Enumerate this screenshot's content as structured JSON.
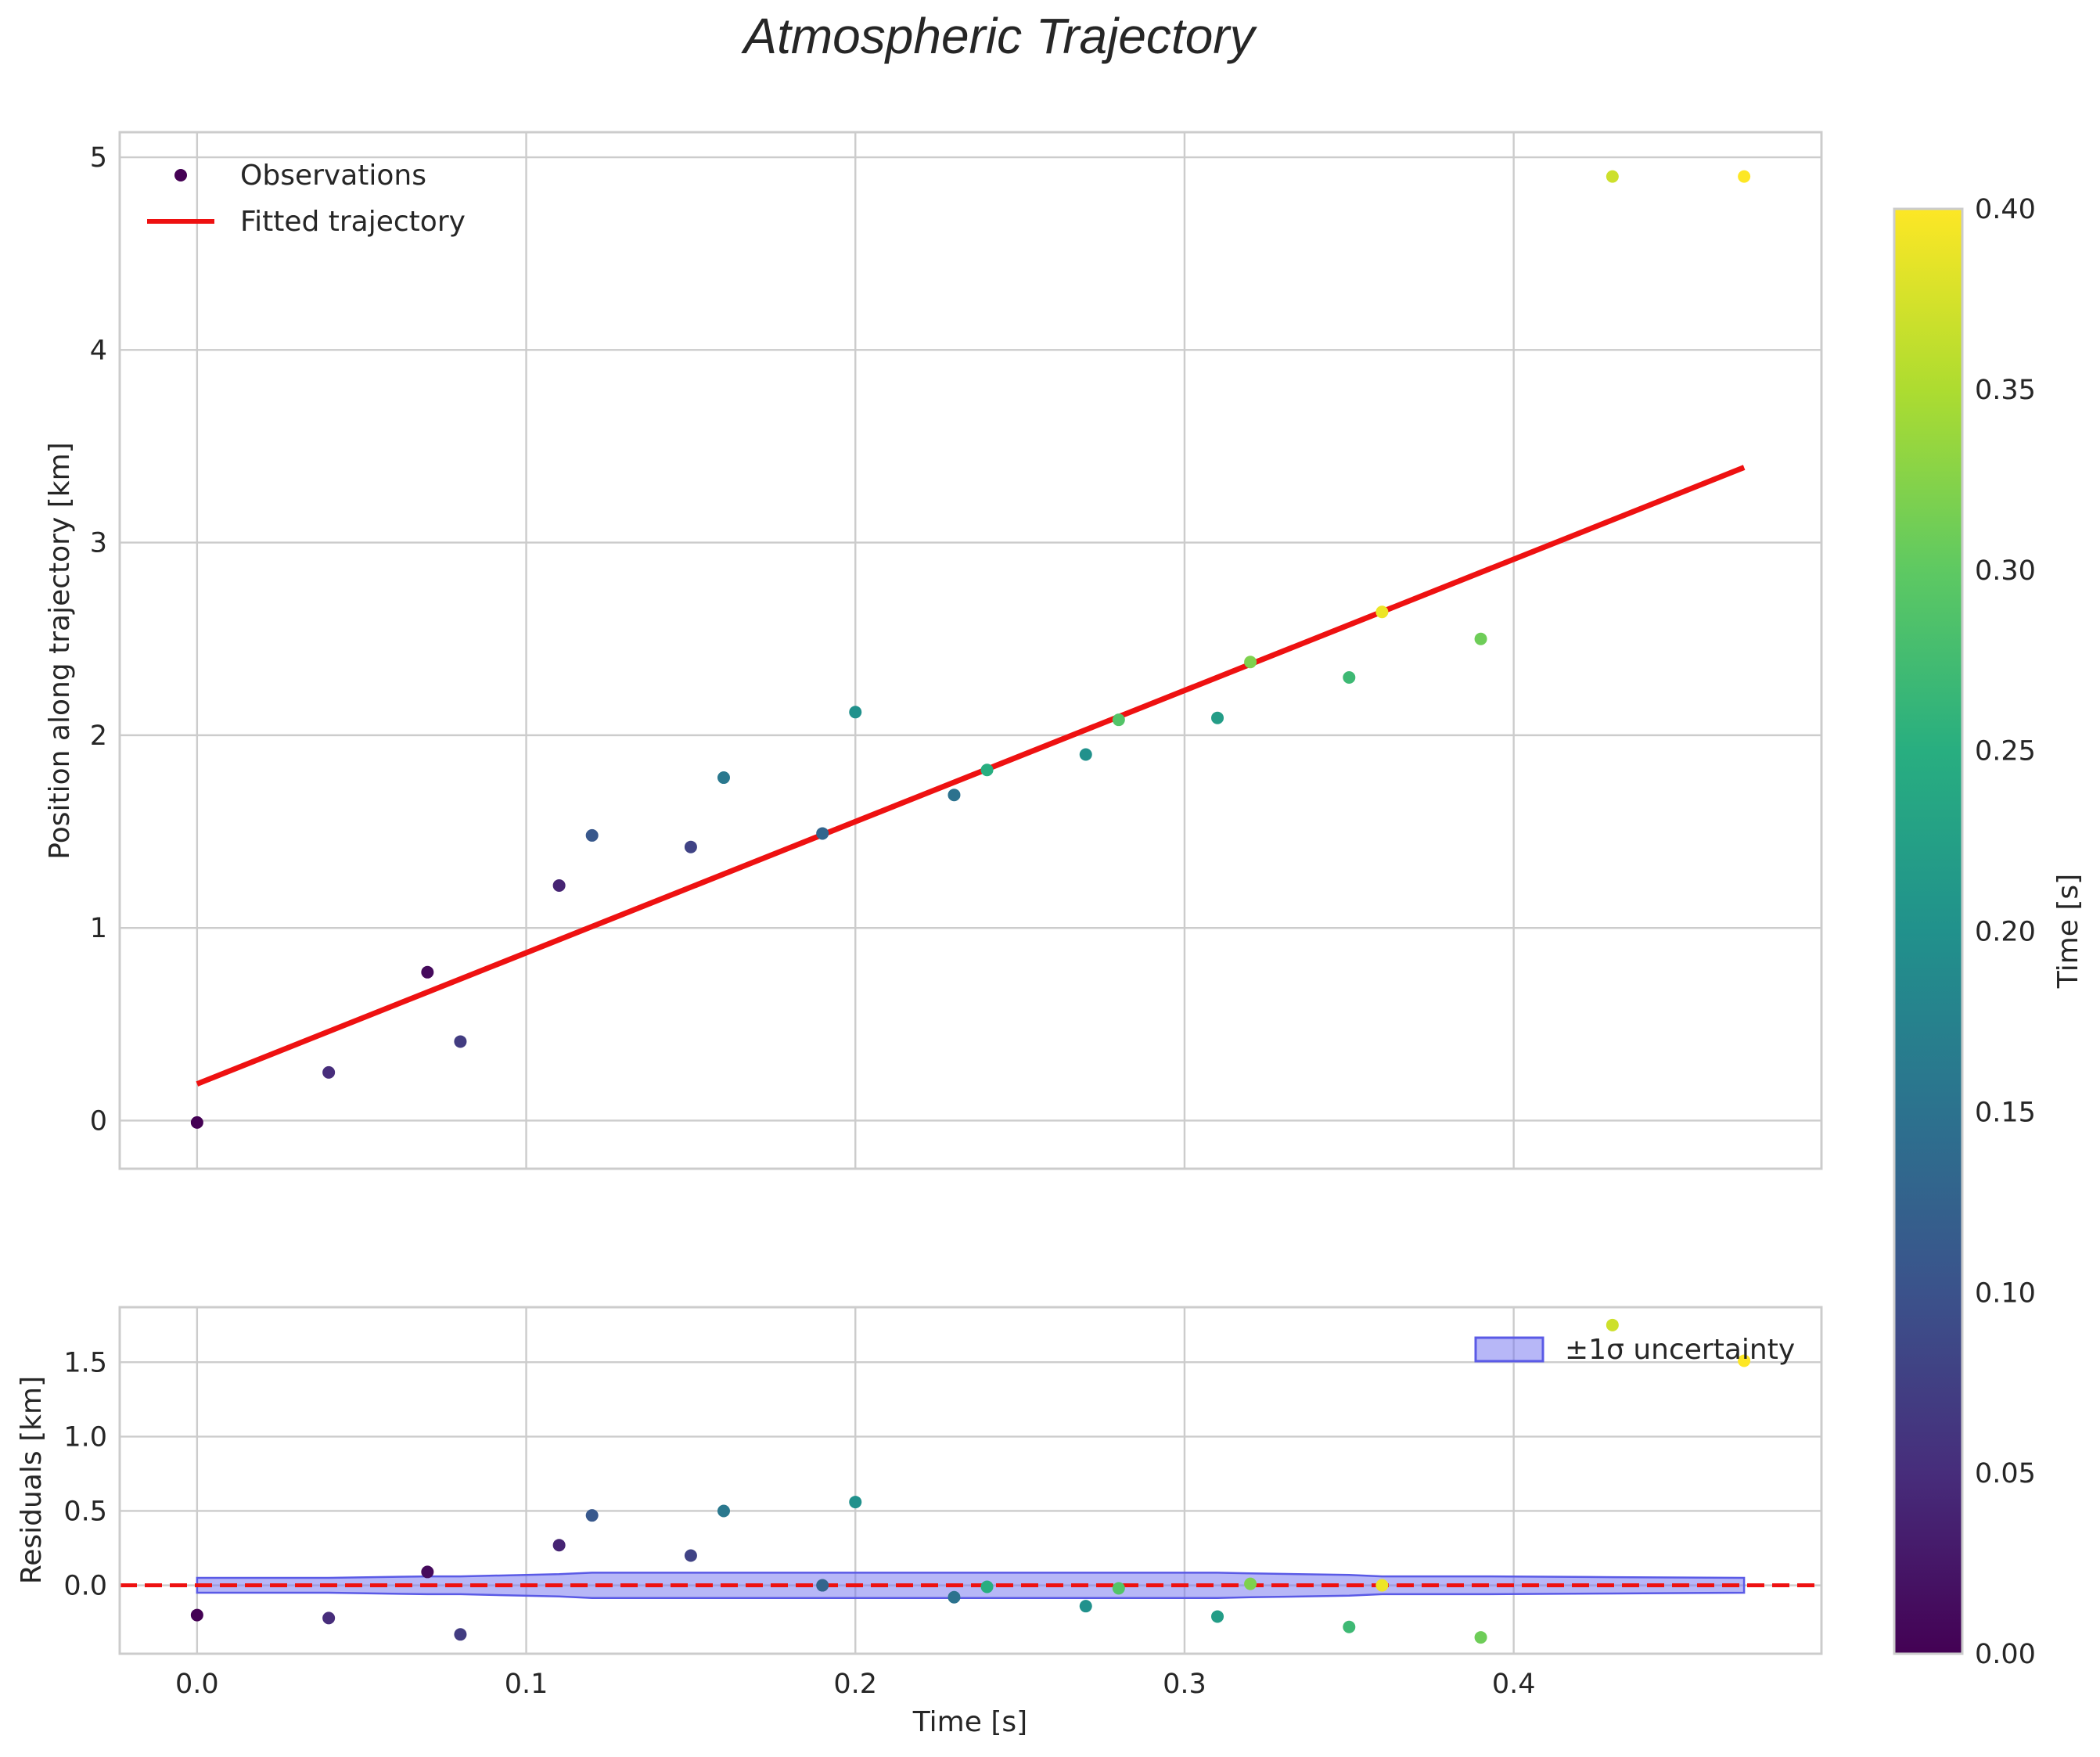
{
  "chart_data": {
    "type": "scatter",
    "title": "Atmospheric Trajectory",
    "colormap": "viridis",
    "colors": {
      "fit_line": "#ee1111",
      "zero_line": "#ee1111",
      "band_fill": "#7070f0",
      "band_edge": "#5a5ae6",
      "grid": "#cccccc",
      "text": "#262626"
    },
    "top": {
      "ylabel": "Position along trajectory [km]",
      "xlim": [
        -0.0235,
        0.4935
      ],
      "ylim": [
        -0.25,
        5.13
      ],
      "xticks": [
        0.0,
        0.1,
        0.2,
        0.3,
        0.4
      ],
      "yticks": [
        0,
        1,
        2,
        3,
        4,
        5
      ],
      "ytick_labels": [
        "0",
        "1",
        "2",
        "3",
        "4",
        "5"
      ],
      "observations": {
        "t": [
          0.0,
          0.04,
          0.07,
          0.08,
          0.11,
          0.12,
          0.15,
          0.16,
          0.19,
          0.2,
          0.23,
          0.24,
          0.27,
          0.28,
          0.31,
          0.32,
          0.35,
          0.36,
          0.39,
          0.43,
          0.47
        ],
        "position": [
          -0.01,
          0.25,
          0.77,
          0.41,
          1.22,
          1.48,
          1.42,
          1.78,
          1.49,
          2.12,
          1.69,
          1.82,
          1.9,
          2.08,
          2.09,
          2.38,
          2.3,
          2.64,
          2.5,
          4.9,
          4.9
        ],
        "color_value": [
          0.0,
          0.05,
          0.01,
          0.07,
          0.04,
          0.11,
          0.08,
          0.16,
          0.13,
          0.2,
          0.15,
          0.25,
          0.2,
          0.29,
          0.22,
          0.32,
          0.27,
          0.39,
          0.31,
          0.37,
          0.4
        ]
      },
      "fit": {
        "x": [
          0.0,
          0.47
        ],
        "y": [
          0.19,
          3.39
        ]
      },
      "legend": {
        "observations": "Observations",
        "fit": "Fitted trajectory",
        "location": "upper-left"
      }
    },
    "bottom": {
      "ylabel": "Residuals [km]",
      "xlabel": "Time [s]",
      "xlim": [
        -0.0235,
        0.4935
      ],
      "ylim": [
        -0.46,
        1.87
      ],
      "xticks": [
        0.0,
        0.1,
        0.2,
        0.3,
        0.4
      ],
      "xtick_labels": [
        "0.0",
        "0.1",
        "0.2",
        "0.3",
        "0.4"
      ],
      "yticks": [
        0.0,
        0.5,
        1.0,
        1.5
      ],
      "ytick_labels": [
        "0.0",
        "0.5",
        "1.0",
        "1.5"
      ],
      "residuals": [
        -0.2,
        -0.22,
        0.09,
        -0.33,
        0.27,
        0.47,
        0.2,
        0.5,
        0.0,
        0.56,
        -0.08,
        -0.01,
        -0.14,
        -0.02,
        -0.21,
        0.01,
        -0.28,
        0.0,
        -0.35,
        1.75,
        1.51
      ],
      "uncertainty_band": {
        "t": [
          0.0,
          0.04,
          0.07,
          0.08,
          0.11,
          0.12,
          0.15,
          0.16,
          0.19,
          0.2,
          0.23,
          0.24,
          0.27,
          0.28,
          0.31,
          0.32,
          0.35,
          0.36,
          0.39,
          0.43,
          0.47
        ],
        "sigma": [
          0.05,
          0.05,
          0.06,
          0.06,
          0.075,
          0.085,
          0.085,
          0.085,
          0.085,
          0.085,
          0.085,
          0.085,
          0.085,
          0.085,
          0.085,
          0.08,
          0.07,
          0.06,
          0.06,
          0.055,
          0.05
        ]
      },
      "zero_line": 0,
      "legend": {
        "band": "±1σ uncertainty",
        "location": "upper-right"
      }
    },
    "colorbar": {
      "label": "Time [s]",
      "range": [
        0.0,
        0.4
      ],
      "ticks": [
        0.0,
        0.05,
        0.1,
        0.15,
        0.2,
        0.25,
        0.3,
        0.35,
        0.4
      ],
      "tick_labels": [
        "0.00",
        "0.05",
        "0.10",
        "0.15",
        "0.20",
        "0.25",
        "0.30",
        "0.35",
        "0.40"
      ]
    }
  }
}
